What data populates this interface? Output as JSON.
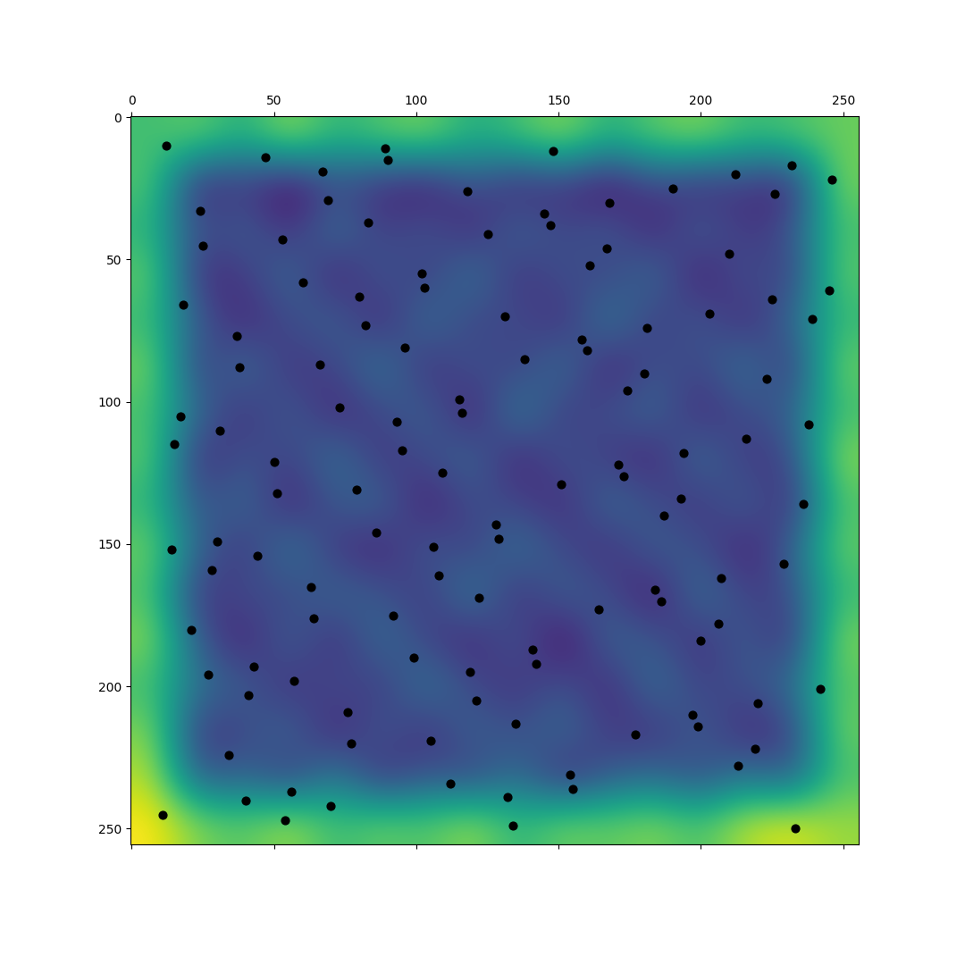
{
  "chart_data": {
    "type": "heatmap",
    "xlim": [
      -0.5,
      255.5
    ],
    "ylim": [
      255.5,
      -0.5
    ],
    "xticks": [
      0,
      50,
      100,
      150,
      200,
      250
    ],
    "yticks": [
      0,
      50,
      100,
      150,
      200,
      250
    ],
    "cells": [
      [
        0.75,
        0.8,
        0.7,
        0.85,
        0.72,
        0.78,
        0.82,
        0.7,
        0.76,
        0.84,
        0.71,
        0.79,
        0.83,
        0.74,
        0.77,
        0.8
      ],
      [
        0.78,
        0.35,
        0.42,
        0.3,
        0.45,
        0.38,
        0.33,
        0.47,
        0.36,
        0.4,
        0.31,
        0.44,
        0.37,
        0.41,
        0.34,
        0.82
      ],
      [
        0.72,
        0.44,
        0.5,
        0.38,
        0.55,
        0.41,
        0.48,
        0.36,
        0.52,
        0.43,
        0.49,
        0.35,
        0.51,
        0.39,
        0.46,
        0.76
      ],
      [
        0.8,
        0.37,
        0.41,
        0.53,
        0.34,
        0.49,
        0.4,
        0.56,
        0.38,
        0.47,
        0.42,
        0.54,
        0.33,
        0.48,
        0.4,
        0.79
      ],
      [
        0.74,
        0.48,
        0.36,
        0.45,
        0.51,
        0.35,
        0.55,
        0.42,
        0.46,
        0.37,
        0.58,
        0.4,
        0.49,
        0.36,
        0.52,
        0.73
      ],
      [
        0.82,
        0.4,
        0.54,
        0.39,
        0.43,
        0.57,
        0.37,
        0.48,
        0.41,
        0.55,
        0.34,
        0.47,
        0.43,
        0.56,
        0.38,
        0.81
      ],
      [
        0.76,
        0.52,
        0.38,
        0.5,
        0.36,
        0.44,
        0.51,
        0.33,
        0.59,
        0.4,
        0.46,
        0.52,
        0.37,
        0.45,
        0.5,
        0.75
      ],
      [
        0.79,
        0.36,
        0.47,
        0.42,
        0.55,
        0.39,
        0.45,
        0.52,
        0.35,
        0.48,
        0.41,
        0.36,
        0.54,
        0.4,
        0.43,
        0.84
      ],
      [
        0.73,
        0.45,
        0.53,
        0.35,
        0.48,
        0.52,
        0.34,
        0.46,
        0.43,
        0.37,
        0.53,
        0.45,
        0.39,
        0.51,
        0.36,
        0.77
      ],
      [
        0.81,
        0.5,
        0.39,
        0.57,
        0.4,
        0.36,
        0.49,
        0.41,
        0.55,
        0.44,
        0.38,
        0.5,
        0.46,
        0.35,
        0.49,
        0.8
      ],
      [
        0.77,
        0.38,
        0.46,
        0.43,
        0.52,
        0.47,
        0.4,
        0.58,
        0.37,
        0.51,
        0.45,
        0.33,
        0.55,
        0.42,
        0.44,
        0.74
      ],
      [
        0.84,
        0.47,
        0.35,
        0.51,
        0.37,
        0.54,
        0.43,
        0.36,
        0.49,
        0.3,
        0.52,
        0.47,
        0.38,
        0.5,
        0.37,
        0.83
      ],
      [
        0.75,
        0.54,
        0.49,
        0.38,
        0.46,
        0.4,
        0.56,
        0.44,
        0.39,
        0.47,
        0.36,
        0.55,
        0.42,
        0.46,
        0.53,
        0.78
      ],
      [
        0.83,
        0.39,
        0.44,
        0.52,
        0.35,
        0.49,
        0.38,
        0.51,
        0.45,
        0.53,
        0.41,
        0.39,
        0.5,
        0.37,
        0.41,
        0.81
      ],
      [
        0.88,
        0.46,
        0.51,
        0.4,
        0.58,
        0.37,
        0.47,
        0.42,
        0.54,
        0.36,
        0.48,
        0.52,
        0.44,
        0.55,
        0.47,
        0.76
      ],
      [
        0.95,
        0.82,
        0.78,
        0.86,
        0.74,
        0.8,
        0.77,
        0.85,
        0.72,
        0.81,
        0.79,
        0.83,
        0.76,
        0.88,
        0.92,
        0.85
      ]
    ],
    "points": {
      "x": [
        12,
        25,
        38,
        51,
        64,
        77,
        90,
        103,
        116,
        129,
        142,
        155,
        168,
        181,
        194,
        207,
        220,
        233,
        246,
        18,
        31,
        44,
        57,
        70,
        83,
        96,
        109,
        122,
        135,
        148,
        161,
        174,
        187,
        200,
        213,
        226,
        239,
        15,
        28,
        41,
        54,
        67,
        80,
        93,
        106,
        119,
        132,
        145,
        158,
        171,
        184,
        197,
        210,
        223,
        236,
        21,
        34,
        47,
        60,
        73,
        86,
        99,
        112,
        125,
        138,
        151,
        164,
        177,
        190,
        203,
        216,
        229,
        242,
        11,
        24,
        37,
        50,
        63,
        76,
        89,
        102,
        115,
        128,
        141,
        154,
        167,
        180,
        193,
        206,
        219,
        232,
        245,
        17,
        30,
        43,
        56,
        69,
        82,
        95,
        108,
        121,
        134,
        147,
        160,
        173,
        186,
        199,
        212,
        225,
        238,
        14,
        27,
        40,
        53,
        66,
        79,
        92,
        105,
        118,
        131
      ],
      "y": [
        10,
        45,
        88,
        132,
        176,
        220,
        15,
        60,
        104,
        148,
        192,
        236,
        30,
        74,
        118,
        162,
        206,
        250,
        22,
        66,
        110,
        154,
        198,
        242,
        37,
        81,
        125,
        169,
        213,
        12,
        52,
        96,
        140,
        184,
        228,
        27,
        71,
        115,
        159,
        203,
        247,
        19,
        63,
        107,
        151,
        195,
        239,
        34,
        78,
        122,
        166,
        210,
        48,
        92,
        136,
        180,
        224,
        14,
        58,
        102,
        146,
        190,
        234,
        41,
        85,
        129,
        173,
        217,
        25,
        69,
        113,
        157,
        201,
        245,
        33,
        77,
        121,
        165,
        209,
        11,
        55,
        99,
        143,
        187,
        231,
        46,
        90,
        134,
        178,
        222,
        17,
        61,
        105,
        149,
        193,
        237,
        29,
        73,
        117,
        161,
        205,
        249,
        38,
        82,
        126,
        170,
        214,
        20,
        64,
        108,
        152,
        196,
        240,
        43,
        87,
        131,
        175,
        219,
        26,
        70
      ],
      "color": "#000000"
    }
  }
}
